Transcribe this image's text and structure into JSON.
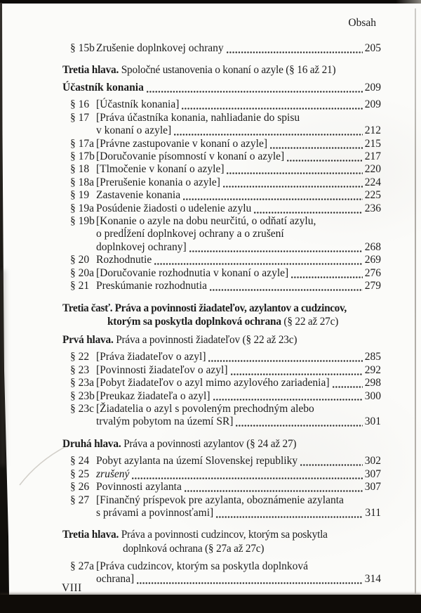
{
  "document": {
    "running_header": "Obsah",
    "footer_page_number": "VIII"
  },
  "colors": {
    "ink": "#1c1c1c",
    "paper": "#fbfbf9",
    "scan_edge": "#0f0c08",
    "dot_leader": "#2c2c2c"
  },
  "toc": [
    {
      "kind": "entry",
      "num": "§ 15b",
      "lines": [
        "Zrušenie doplnkovej ochrany"
      ],
      "page": "205"
    },
    {
      "kind": "section",
      "style": "chapter",
      "lines": [
        [
          {
            "t": "Tretia hlava.",
            "b": true
          },
          {
            "t": " Spoločné ustanovenia o konaní o azyle (§ 16 až 21)"
          }
        ]
      ]
    },
    {
      "kind": "entry",
      "level": 0,
      "num": "",
      "lines": [
        "Účastník konania"
      ],
      "page": "209"
    },
    {
      "kind": "entry",
      "num": "§ 16",
      "lines": [
        "[Účastník konania]"
      ],
      "page": "209"
    },
    {
      "kind": "entry",
      "num": "§ 17",
      "lines": [
        "[Práva účastníka konania, nahliadanie do spisu",
        "v konaní o azyle]"
      ],
      "page": "212"
    },
    {
      "kind": "entry",
      "num": "§ 17a",
      "lines": [
        "[Právne zastupovanie v konaní o azyle]"
      ],
      "page": "215"
    },
    {
      "kind": "entry",
      "num": "§ 17b",
      "lines": [
        "[Doručovanie písomností v konaní o azyle]"
      ],
      "page": "217"
    },
    {
      "kind": "entry",
      "num": "§ 18",
      "lines": [
        "[Tlmočenie v konaní o azyle]"
      ],
      "page": "220"
    },
    {
      "kind": "entry",
      "num": "§ 18a",
      "lines": [
        "[Prerušenie konania o azyle]"
      ],
      "page": "224"
    },
    {
      "kind": "entry",
      "num": "§ 19",
      "lines": [
        "Zastavenie konania"
      ],
      "page": "225"
    },
    {
      "kind": "entry",
      "num": "§ 19a",
      "lines": [
        "Posúdenie žiadosti o udelenie azylu"
      ],
      "page": "236"
    },
    {
      "kind": "entry",
      "num": "§ 19b",
      "lines": [
        "[Konanie o azyle na dobu neurčitú, o odňatí azylu,",
        "o predĺžení doplnkovej ochrany a o zrušení",
        "doplnkovej ochrany]"
      ],
      "page": "268"
    },
    {
      "kind": "entry",
      "num": "§ 20",
      "lines": [
        "Rozhodnutie"
      ],
      "page": "269"
    },
    {
      "kind": "entry",
      "num": "§ 20a",
      "lines": [
        "[Doručovanie rozhodnutia v konaní o azyle]"
      ],
      "page": "276"
    },
    {
      "kind": "entry",
      "num": "§ 21",
      "lines": [
        "Preskúmanie rozhodnutia"
      ],
      "page": "279"
    },
    {
      "kind": "section",
      "style": "part",
      "lines": [
        [
          {
            "t": "Tretia časť. Práva a povinnosti žiadateľov, azylantov a cudzincov,",
            "b": true
          }
        ],
        [
          {
            "t": "ktorým sa poskytla doplnková ochrana",
            "b": true
          },
          {
            "t": " (§ 22 až 27c)"
          }
        ]
      ]
    },
    {
      "kind": "section",
      "style": "chapter",
      "lines": [
        [
          {
            "t": "Prvá hlava.",
            "b": true
          },
          {
            "t": " Práva a povinnosti žiadateľov (§ 22 až 23c)"
          }
        ]
      ]
    },
    {
      "kind": "entry",
      "num": "§ 22",
      "lines": [
        "[Práva žiadateľov o azyl]"
      ],
      "page": "285"
    },
    {
      "kind": "entry",
      "num": "§ 23",
      "lines": [
        "[Povinnosti žiadateľov o azyl]"
      ],
      "page": "292"
    },
    {
      "kind": "entry",
      "num": "§ 23a",
      "lines": [
        "[Pobyt žiadateľov o azyl mimo azylového zariadenia]"
      ],
      "page": "298"
    },
    {
      "kind": "entry",
      "num": "§ 23b",
      "lines": [
        "[Preukaz žiadateľa o azyl]"
      ],
      "page": "300"
    },
    {
      "kind": "entry",
      "num": "§ 23c",
      "lines": [
        "[Žiadatelia o azyl s povoleným prechodným alebo",
        "trvalým pobytom na území SR]"
      ],
      "page": "301"
    },
    {
      "kind": "section",
      "style": "chapter",
      "lines": [
        [
          {
            "t": "Druhá hlava.",
            "b": true
          },
          {
            "t": " Práva a povinnosti azylantov (§ 24 až 27)"
          }
        ]
      ]
    },
    {
      "kind": "entry",
      "num": "§ 24",
      "lines": [
        "Pobyt azylanta na území Slovenskej republiky"
      ],
      "page": "302"
    },
    {
      "kind": "entry",
      "num": "§ 25",
      "italic": true,
      "lines": [
        "zrušený"
      ],
      "page": "307"
    },
    {
      "kind": "entry",
      "num": "§ 26",
      "lines": [
        "Povinnosti azylanta"
      ],
      "page": "307"
    },
    {
      "kind": "entry",
      "num": "§ 27",
      "lines": [
        "[Finančný príspevok pre azylanta, oboznámenie azylanta",
        "s právami a povinnosťami]"
      ],
      "page": "311"
    },
    {
      "kind": "section",
      "style": "chapter chapter-wrap",
      "lines": [
        [
          {
            "t": "Tretia hlava.",
            "b": true
          },
          {
            "t": " Práva a povinnosti cudzincov, ktorým sa poskytla"
          }
        ],
        [
          {
            "t": "doplnková ochrana (§ 27a až 27c)"
          }
        ]
      ]
    },
    {
      "kind": "entry",
      "num": "§ 27a",
      "lines": [
        "[Práva cudzincov, ktorým sa poskytla doplnková",
        "ochrana]"
      ],
      "page": "314"
    }
  ]
}
